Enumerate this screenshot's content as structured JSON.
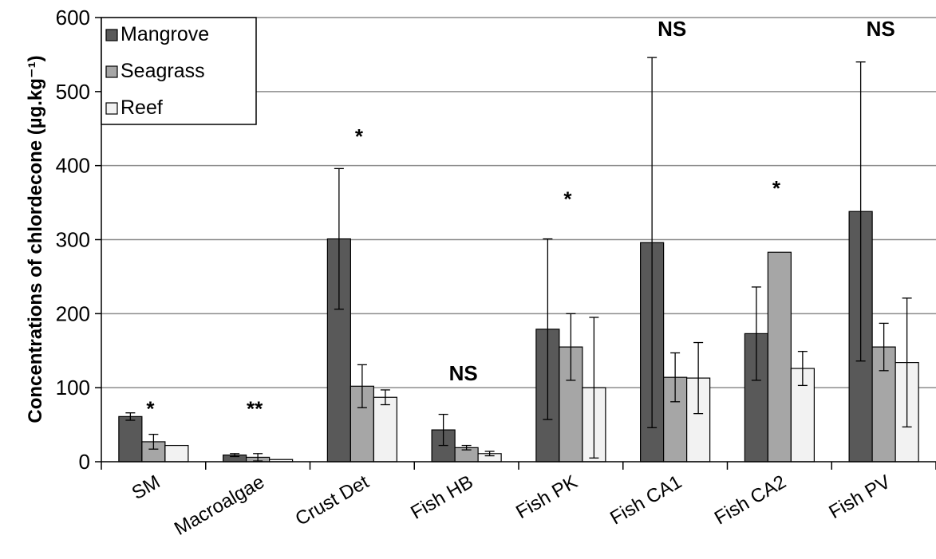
{
  "chart_data": {
    "type": "bar",
    "title": "",
    "xlabel": "",
    "ylabel": "Concentrations of chlordecone (µg.kg⁻¹)",
    "ylim": [
      0,
      600
    ],
    "yticks": [
      0,
      100,
      200,
      300,
      400,
      500,
      600
    ],
    "grid": true,
    "legend_position": "top-left",
    "categories": [
      "SM",
      "Macroalgae",
      "Crust Det",
      "Fish HB",
      "Fish PK",
      "Fish CA1",
      "Fish CA2",
      "Fish PV"
    ],
    "series": [
      {
        "name": "Mangrove",
        "color": "#595959",
        "values": [
          61,
          9,
          301,
          43,
          179,
          296,
          173,
          338
        ],
        "errors": [
          5,
          2,
          95,
          21,
          122,
          250,
          63,
          202
        ]
      },
      {
        "name": "Seagrass",
        "color": "#a6a6a6",
        "values": [
          27,
          6,
          102,
          19,
          155,
          114,
          283,
          155
        ],
        "errors": [
          10,
          5,
          29,
          3,
          45,
          33,
          null,
          32
        ]
      },
      {
        "name": "Reef",
        "color": "#f2f2f2",
        "values": [
          22,
          3,
          87,
          11,
          100,
          113,
          126,
          134
        ],
        "errors": [
          null,
          null,
          10,
          3,
          95,
          48,
          23,
          87
        ]
      }
    ],
    "annotations": [
      {
        "category": "SM",
        "text": "*",
        "y": 62
      },
      {
        "category": "Macroalgae",
        "text": "**",
        "y": 62
      },
      {
        "category": "Crust Det",
        "text": "*",
        "y": 430
      },
      {
        "category": "Fish HB",
        "text": "NS",
        "y": 110
      },
      {
        "category": "Fish PK",
        "text": "*",
        "y": 345
      },
      {
        "category": "Fish CA1",
        "text": "NS",
        "y": 575
      },
      {
        "category": "Fish CA2",
        "text": "*",
        "y": 360
      },
      {
        "category": "Fish PV",
        "text": "NS",
        "y": 575
      }
    ]
  }
}
